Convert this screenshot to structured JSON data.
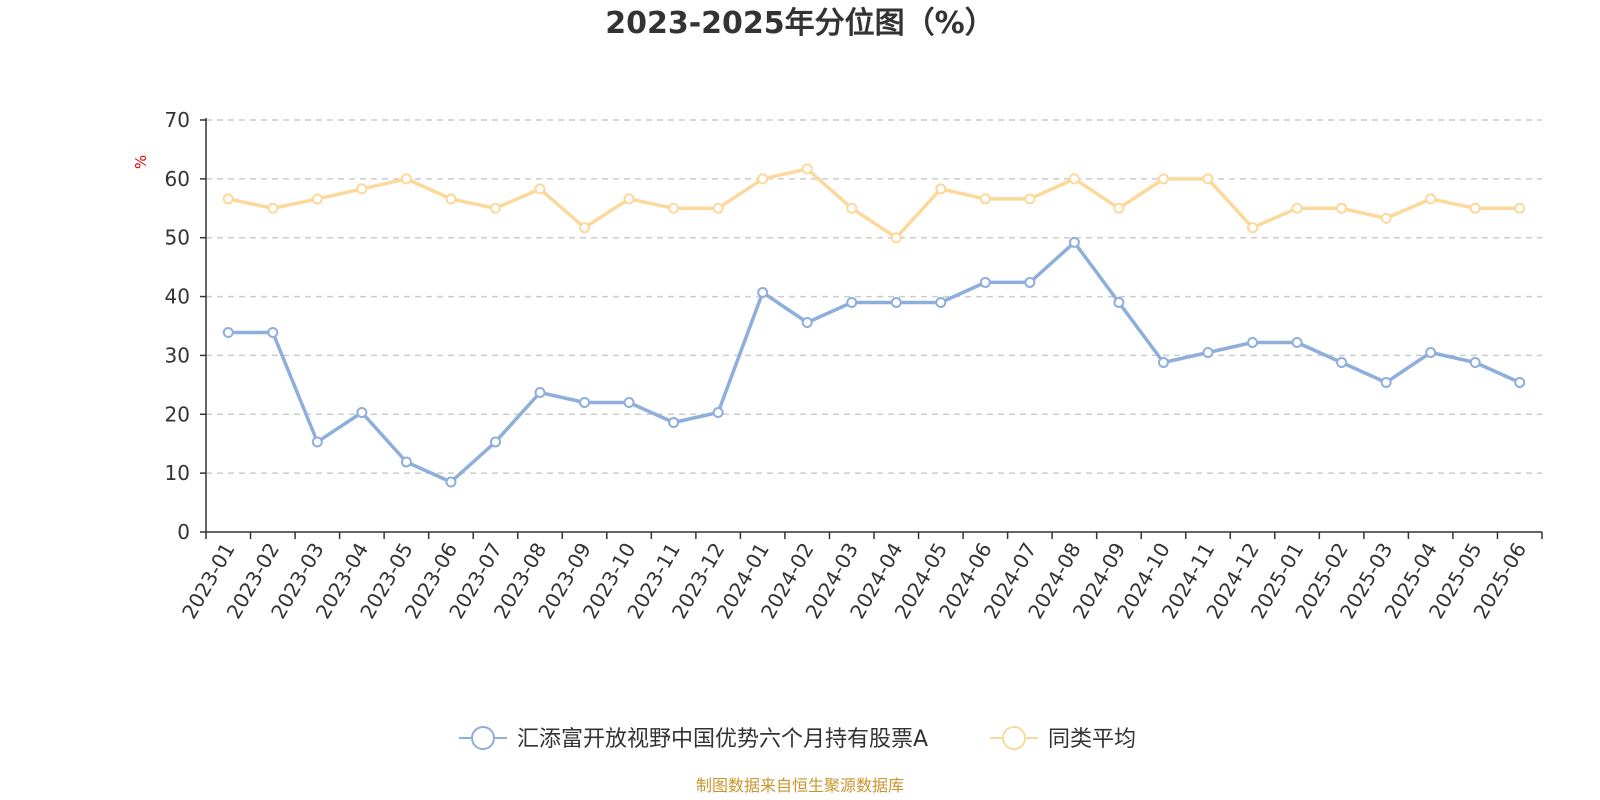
{
  "chart_data": {
    "type": "line",
    "title": "2023-2025年分位图（%）",
    "y_unit": "%",
    "ylim": [
      0,
      70
    ],
    "y_ticks": [
      0,
      10,
      20,
      30,
      40,
      50,
      60,
      70
    ],
    "grid": "horizontal-dashed",
    "legend_position": "bottom-center",
    "categories": [
      "2023-01",
      "2023-02",
      "2023-03",
      "2023-04",
      "2023-05",
      "2023-06",
      "2023-07",
      "2023-08",
      "2023-09",
      "2023-10",
      "2023-11",
      "2023-12",
      "2024-01",
      "2024-02",
      "2024-03",
      "2024-04",
      "2024-05",
      "2024-06",
      "2024-07",
      "2024-08",
      "2024-09",
      "2024-10",
      "2024-11",
      "2024-12",
      "2025-01",
      "2025-02",
      "2025-03",
      "2025-04",
      "2025-05",
      "2025-06"
    ],
    "series": [
      {
        "name": "汇添富开放视野中国优势六个月持有股票A",
        "color": "#8eaedb",
        "values": [
          33.9,
          33.9,
          15.3,
          20.3,
          11.9,
          8.5,
          15.3,
          23.7,
          22.0,
          22.0,
          18.6,
          20.3,
          40.7,
          35.6,
          39.0,
          39.0,
          39.0,
          42.4,
          42.4,
          49.2,
          39.0,
          28.8,
          30.5,
          32.2,
          32.2,
          28.8,
          25.4,
          30.5,
          28.8,
          25.4
        ]
      },
      {
        "name": "同类平均",
        "color": "#fcd99b",
        "values": [
          56.6,
          55.0,
          56.6,
          58.3,
          60.0,
          56.6,
          55.0,
          58.3,
          51.7,
          56.6,
          55.0,
          55.0,
          60.0,
          61.7,
          55.0,
          50.0,
          58.3,
          56.6,
          56.6,
          60.0,
          55.0,
          60.0,
          60.0,
          51.7,
          55.0,
          55.0,
          53.3,
          56.6,
          55.0,
          55.0
        ]
      }
    ]
  },
  "source": "制图数据来自恒生聚源数据库"
}
